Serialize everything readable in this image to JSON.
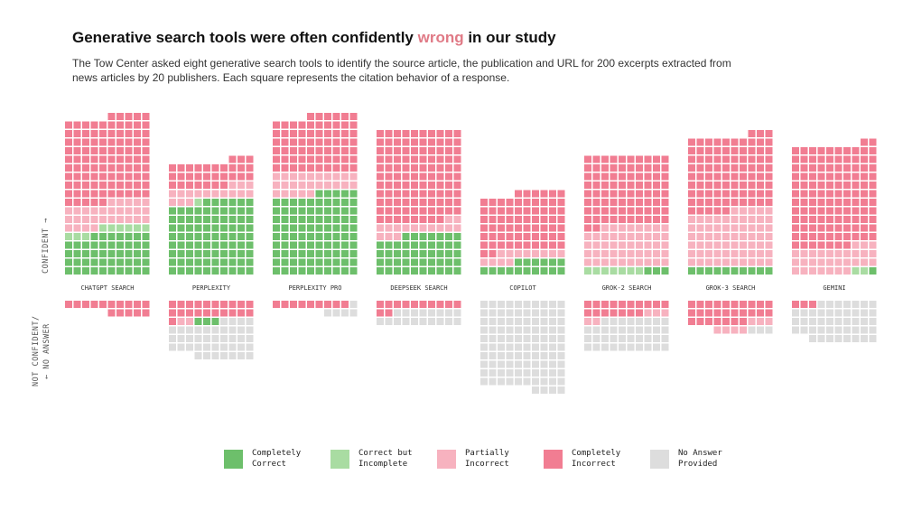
{
  "title": {
    "before": "Generative search tools were often confidently ",
    "highlight": "wrong",
    "after": " in our study"
  },
  "subtitle": "The Tow Center asked eight generative search tools to identify the source article, the publication and URL for 200 excerpts extracted from news articles by 20 publishers. Each square represents the citation behavior of a response.",
  "axis": {
    "confident": "CONFIDENT →",
    "not_confident_1": "NOT CONFIDENT/",
    "not_confident_2": "← NO ANSWER"
  },
  "colors": {
    "completely_correct": "#6dbf6b",
    "correct_but_incomplete": "#a9dca2",
    "partially_incorrect": "#f7b2bf",
    "completely_incorrect": "#f17d92",
    "no_answer": "#dddddd",
    "highlight": "#e07a86"
  },
  "legend": [
    {
      "key": "completely_correct",
      "label": "Completely\nCorrect"
    },
    {
      "key": "correct_but_incomplete",
      "label": "Correct but\nIncomplete"
    },
    {
      "key": "partially_incorrect",
      "label": "Partially\nIncorrect"
    },
    {
      "key": "completely_incorrect",
      "label": "Completely\nIncorrect"
    },
    {
      "key": "no_answer",
      "label": "No Answer\nProvided"
    }
  ],
  "chart_data": {
    "type": "waffle",
    "total_per_tool": 200,
    "categories": [
      "Completely Correct",
      "Correct but Incomplete",
      "Partially Incorrect",
      "Completely Incorrect",
      "No Answer Provided"
    ],
    "tools": [
      {
        "name": "CHATGPT SEARCH",
        "confident": {
          "completely_correct": 47,
          "correct_but_incomplete": 9,
          "partially_incorrect": 29,
          "completely_incorrect": 100
        },
        "not_confident": {
          "completely_correct": 0,
          "correct_but_incomplete": 0,
          "partially_incorrect": 0,
          "completely_incorrect": 15,
          "no_answer": 0
        }
      },
      {
        "name": "PERPLEXITY",
        "confident": {
          "completely_correct": 86,
          "correct_but_incomplete": 1,
          "partially_incorrect": 16,
          "completely_incorrect": 30
        },
        "not_confident": {
          "completely_correct": 3,
          "correct_but_incomplete": 0,
          "partially_incorrect": 2,
          "completely_incorrect": 21,
          "no_answer": 41
        }
      },
      {
        "name": "PERPLEXITY PRO",
        "confident": {
          "completely_correct": 95,
          "correct_but_incomplete": 0,
          "partially_incorrect": 25,
          "completely_incorrect": 66
        },
        "not_confident": {
          "completely_correct": 0,
          "correct_but_incomplete": 0,
          "partially_incorrect": 0,
          "completely_incorrect": 9,
          "no_answer": 5
        }
      },
      {
        "name": "DEEPSEEK SEARCH",
        "confident": {
          "completely_correct": 47,
          "correct_but_incomplete": 0,
          "partially_incorrect": 15,
          "completely_incorrect": 108
        },
        "not_confident": {
          "completely_correct": 0,
          "correct_but_incomplete": 0,
          "partially_incorrect": 0,
          "completely_incorrect": 12,
          "no_answer": 18
        }
      },
      {
        "name": "COPILOT",
        "confident": {
          "completely_correct": 16,
          "correct_but_incomplete": 0,
          "partially_incorrect": 12,
          "completely_incorrect": 68
        },
        "not_confident": {
          "completely_correct": 0,
          "correct_but_incomplete": 0,
          "partially_incorrect": 0,
          "completely_incorrect": 0,
          "no_answer": 104
        }
      },
      {
        "name": "GROK-2 SEARCH",
        "confident": {
          "completely_correct": 3,
          "correct_but_incomplete": 7,
          "partially_incorrect": 48,
          "completely_incorrect": 82
        },
        "not_confident": {
          "completely_correct": 0,
          "correct_but_incomplete": 0,
          "partially_incorrect": 5,
          "completely_incorrect": 17,
          "no_answer": 38
        }
      },
      {
        "name": "GROK-3 SEARCH",
        "confident": {
          "completely_correct": 10,
          "correct_but_incomplete": 0,
          "partially_incorrect": 65,
          "completely_incorrect": 88
        },
        "not_confident": {
          "completely_correct": 0,
          "correct_but_incomplete": 0,
          "partially_incorrect": 7,
          "completely_incorrect": 27,
          "no_answer": 3
        }
      },
      {
        "name": "GEMINI",
        "confident": {
          "completely_correct": 1,
          "correct_but_incomplete": 2,
          "partially_incorrect": 30,
          "completely_incorrect": 119
        },
        "not_confident": {
          "completely_correct": 0,
          "correct_but_incomplete": 0,
          "partially_incorrect": 0,
          "completely_incorrect": 3,
          "no_answer": 45
        }
      }
    ]
  }
}
